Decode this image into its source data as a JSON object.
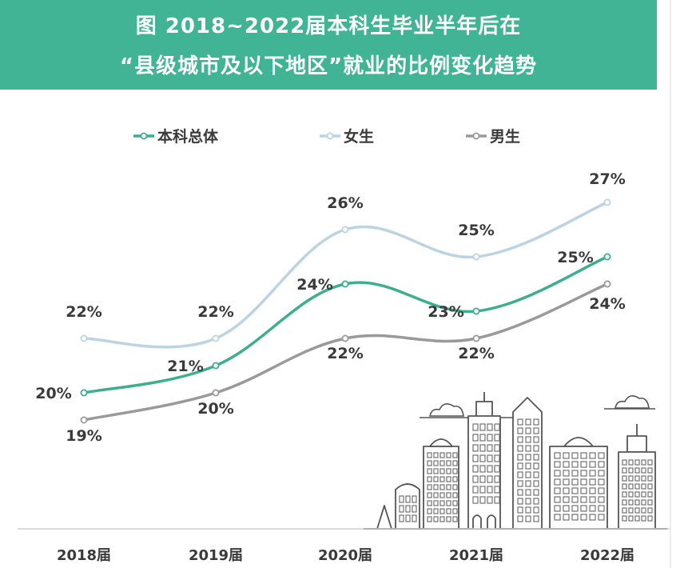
{
  "header": {
    "line1": "图  2018~2022届本科生毕业半年后在",
    "line2": "“县级城市及以下地区”就业的比例变化趋势"
  },
  "colors": {
    "banner": "#40b495",
    "total": "#3fae8f",
    "female": "#bcd3e1",
    "male": "#9a9a9a"
  },
  "chart_data": {
    "type": "line",
    "title": "2018~2022届本科生毕业半年后在“县级城市及以下地区”就业的比例变化趋势",
    "categories": [
      "2018届",
      "2019届",
      "2020届",
      "2021届",
      "2022届"
    ],
    "series": [
      {
        "name": "本科总体",
        "values": [
          20,
          21,
          24,
          23,
          25
        ],
        "labels": [
          "20%",
          "21%",
          "24%",
          "23%",
          "25%"
        ],
        "color": "#3fae8f"
      },
      {
        "name": "女生",
        "values": [
          22,
          22,
          26,
          25,
          27
        ],
        "labels": [
          "22%",
          "22%",
          "26%",
          "25%",
          "27%"
        ],
        "color": "#bcd3e1"
      },
      {
        "name": "男生",
        "values": [
          19,
          20,
          22,
          22,
          24
        ],
        "labels": [
          "19%",
          "20%",
          "22%",
          "22%",
          "24%"
        ],
        "color": "#9a9a9a"
      }
    ],
    "unit": "%",
    "legend_position": "top",
    "grid": false,
    "decoration": "city-skyline-icon"
  }
}
